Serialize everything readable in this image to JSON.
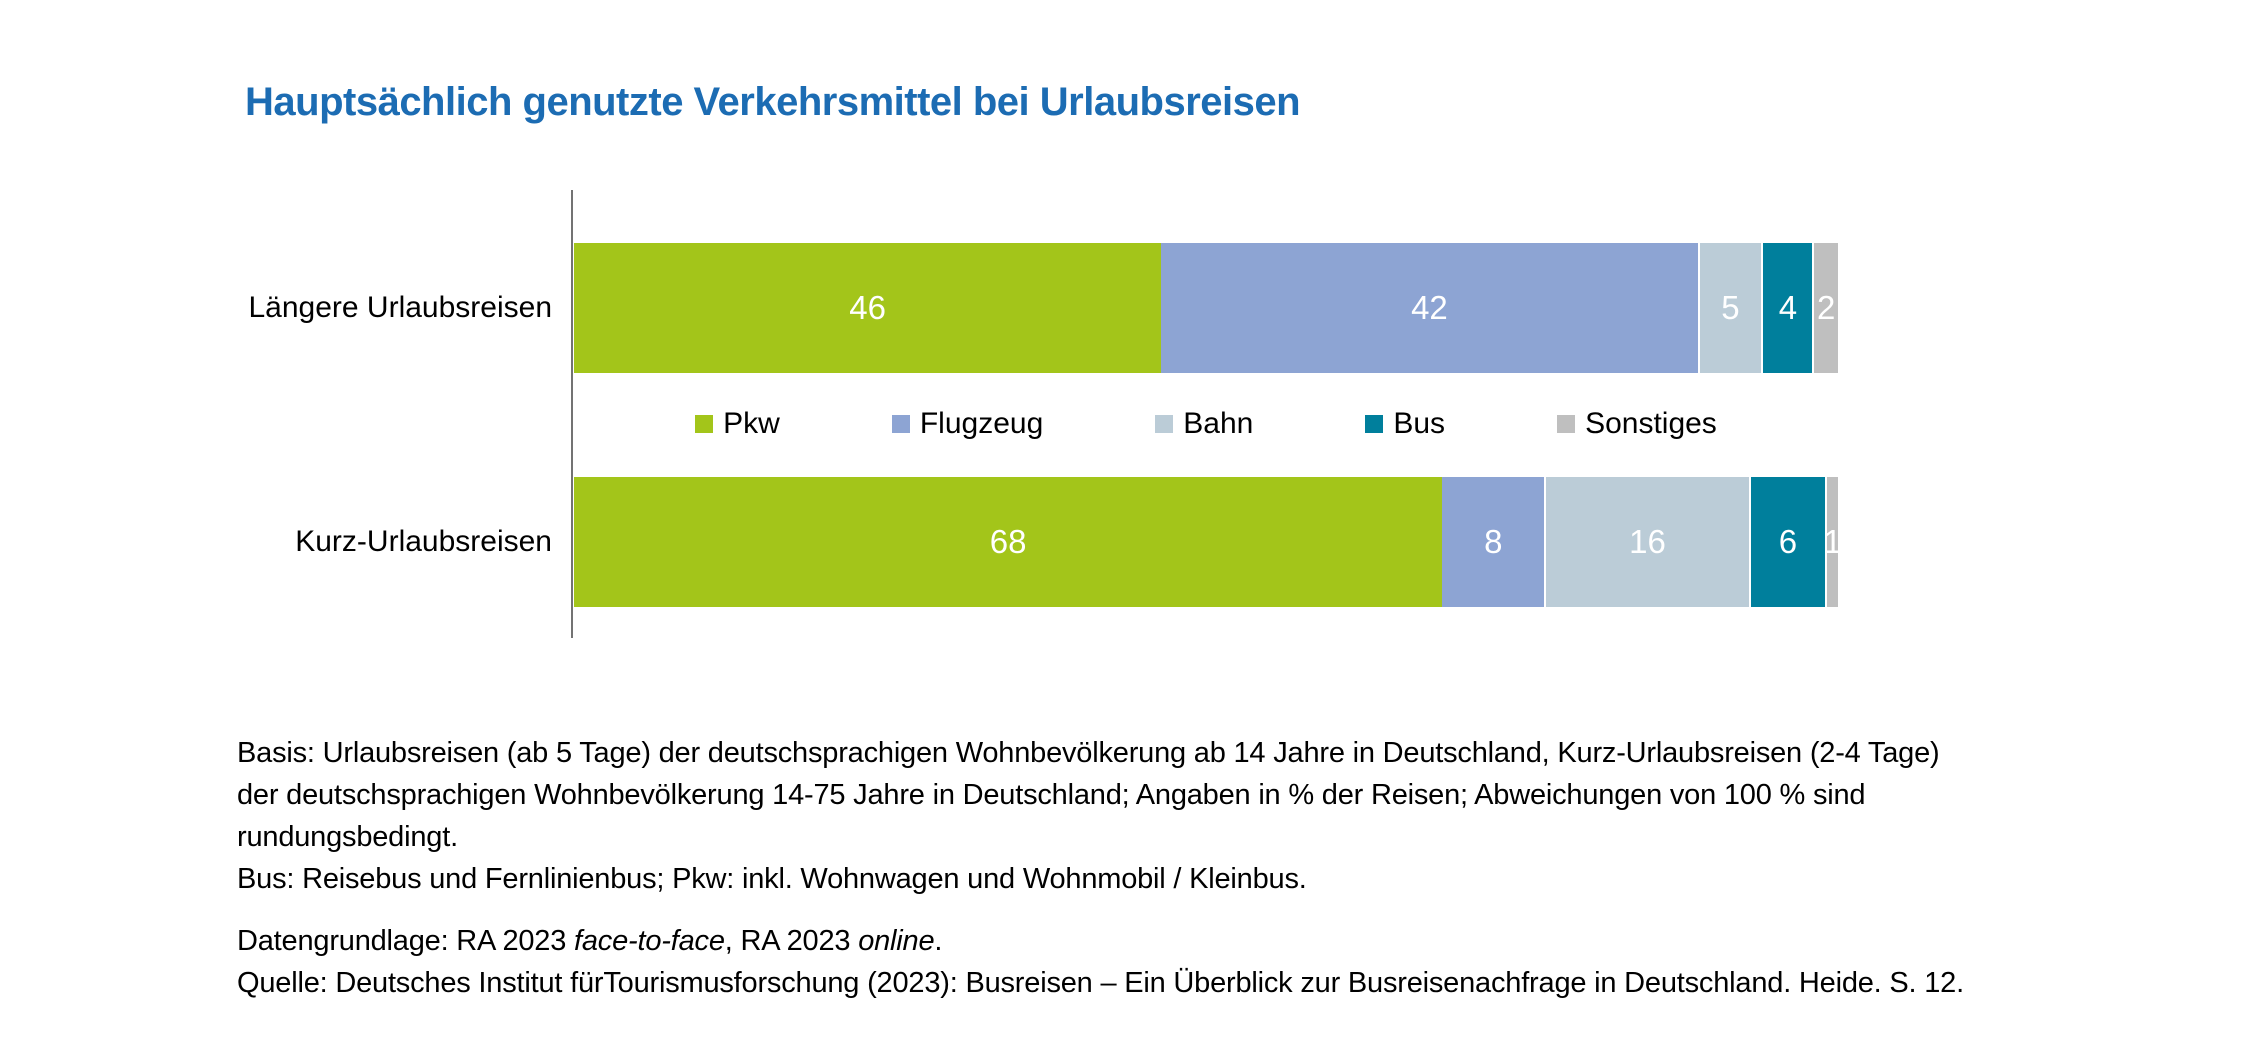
{
  "title": "Hauptsächlich genutzte Verkehrsmittel bei Urlaubsreisen",
  "colors": {
    "title_text": "#1c6cb3",
    "axis_line": "#737373",
    "value_label_text": "#ffffff"
  },
  "chart_data": {
    "type": "bar",
    "orientation": "horizontal",
    "stacked": true,
    "title": "Hauptsächlich genutzte Verkehrsmittel bei Urlaubsreisen",
    "categories": [
      "Längere Urlaubsreisen",
      "Kurz-Urlaubsreisen"
    ],
    "series": [
      {
        "name": "Pkw",
        "color": "#a3c51a",
        "values": [
          46,
          68
        ]
      },
      {
        "name": "Flugzeug",
        "color": "#8da4d3",
        "values": [
          42,
          8
        ]
      },
      {
        "name": "Bahn",
        "color": "#bbccd7",
        "values": [
          5,
          16
        ]
      },
      {
        "name": "Bus",
        "color": "#007f9c",
        "values": [
          4,
          6
        ]
      },
      {
        "name": "Sonstiges",
        "color": "#bfbfbf",
        "values": [
          2,
          1
        ]
      }
    ],
    "xlim": [
      0,
      100
    ],
    "unit": "% der Reisen",
    "value_labels": "inside segments, white",
    "legend_position": "centered between the two bars",
    "grid": false
  },
  "footnotes": {
    "basis_line1": "Basis: Urlaubsreisen (ab 5 Tage) der deutschsprachigen Wohnbevölkerung ab 14 Jahre in Deutschland, Kurz-Urlaubsreisen (2-4 Tage)",
    "basis_line2": "der deutschsprachigen Wohnbevölkerung 14-75 Jahre in Deutschland; Angaben in % der Reisen; Abweichungen von 100 % sind",
    "basis_line3": "rundungsbedingt.",
    "bus_line": "Bus: Reisebus und Fernlinienbus; Pkw: inkl. Wohnwagen und Wohnmobil / Kleinbus.",
    "datengrundlage": {
      "prefix": "Datengrundlage: RA 2023 ",
      "italic1": "face-to-face",
      "mid": ", RA 2023 ",
      "italic2": "online",
      "suffix": "."
    },
    "quelle": "Quelle: Deutsches Institut fürTourismusforschung (2023): Busreisen – Ein Überblick zur Busreisenachfrage in Deutschland. Heide. S. 12."
  }
}
